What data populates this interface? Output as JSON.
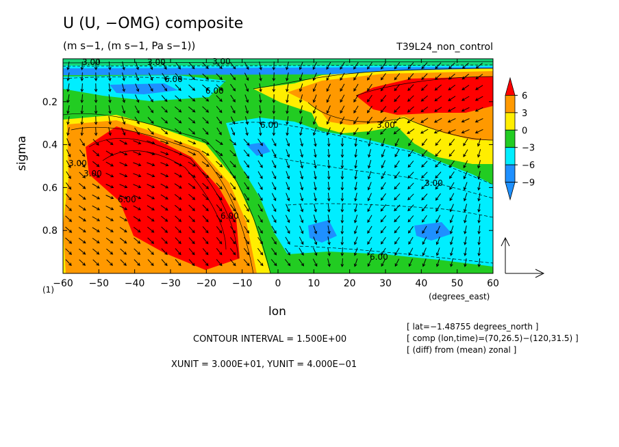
{
  "chart_data": {
    "type": "heatmap",
    "title": "U (U, −OMG) composite",
    "units": "(m s−1, (m s−1, Pa s−1))",
    "run_label": "T39L24_non_control",
    "xlabel": "lon",
    "x_units": "(degrees_east)",
    "ylabel": "sigma",
    "level_marker": "(1)",
    "xlim": [
      -60,
      60
    ],
    "ylim": [
      1.0,
      0.0
    ],
    "x_ticks": [
      "−60",
      "−50",
      "−40",
      "−30",
      "−20",
      "−10",
      "0",
      "10",
      "20",
      "30",
      "40",
      "50",
      "60"
    ],
    "y_ticks": [
      "0.2",
      "0.4",
      "0.6",
      "0.8"
    ],
    "y_tick_values": [
      0.2,
      0.4,
      0.6,
      0.8
    ],
    "colorbar": {
      "labels": [
        "6",
        "3",
        "0",
        "−3",
        "−6",
        "−9"
      ],
      "colors": [
        "#ff0000",
        "#ff9900",
        "#ffee00",
        "#22cc22",
        "#00eeff",
        "#1e90ff"
      ]
    },
    "contour_labels": [
      "3.00",
      "3.00",
      "3.00",
      "6.00",
      "6.00",
      "6.00",
      "3.00",
      "3.00",
      "6.00",
      "6.00",
      "3.00",
      "3.00",
      "6.00"
    ],
    "footer": {
      "contour_interval": "CONTOUR INTERVAL = 1.500E+00",
      "xunit_yunit": "XUNIT = 3.000E+01, YUNIT = 4.000E−01"
    },
    "info": [
      "[ lat=−1.48755 degrees_north ]",
      "[ comp (lon,time)=(70,26.5)−(120,31.5) ]",
      "[ (diff) from (mean) zonal ]"
    ],
    "grid": false
  }
}
